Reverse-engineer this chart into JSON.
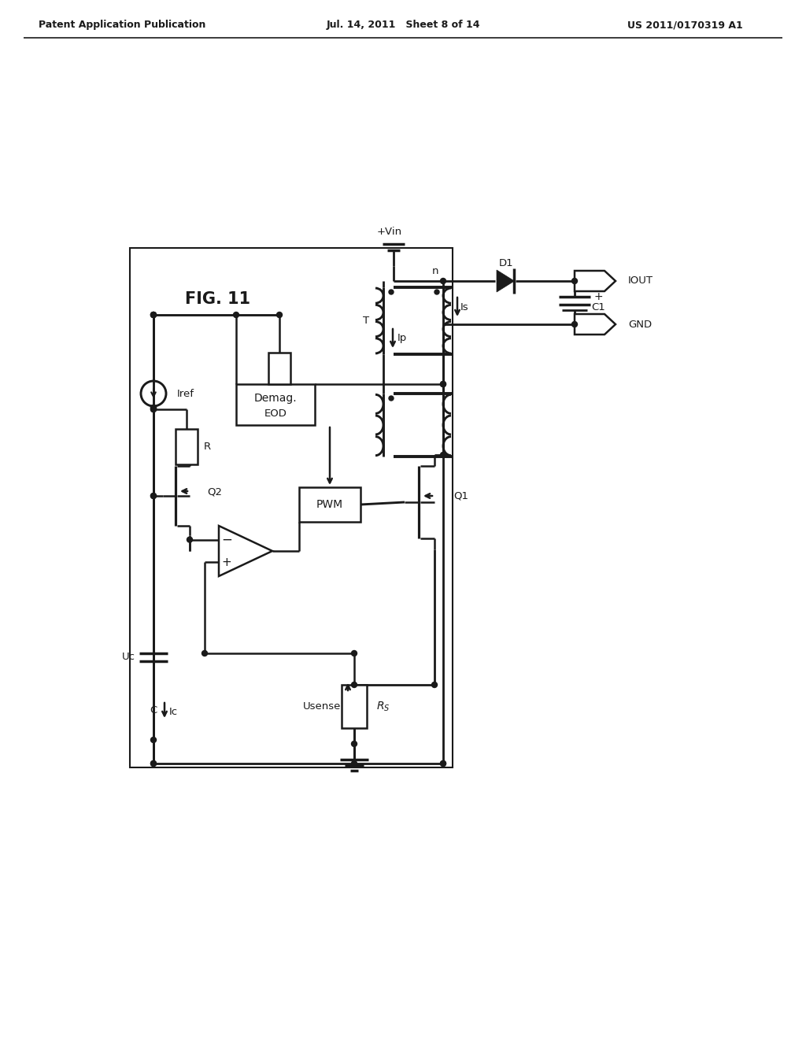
{
  "title_left": "Patent Application Publication",
  "title_mid": "Jul. 14, 2011   Sheet 8 of 14",
  "title_right": "US 2011/0170319 A1",
  "fig_label": "FIG. 11",
  "bg_color": "#ffffff",
  "line_color": "#1a1a1a",
  "line_width": 1.8
}
